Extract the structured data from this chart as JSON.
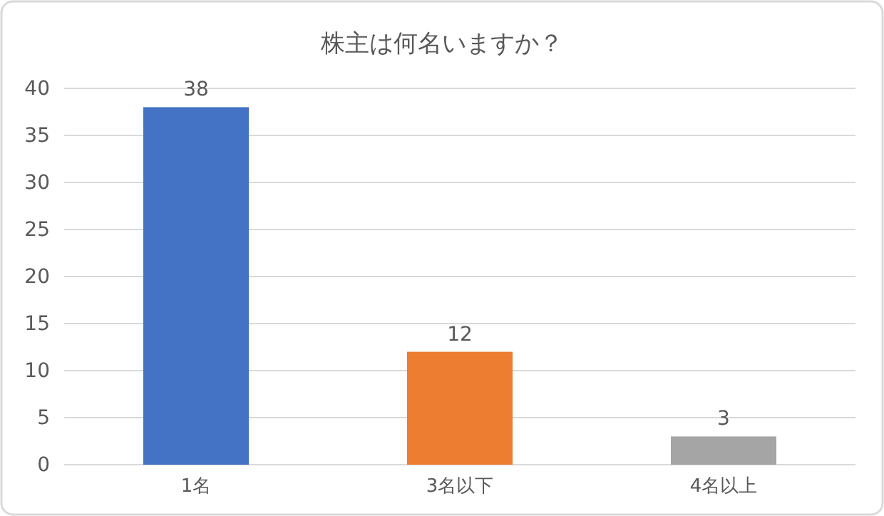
{
  "chart_data": {
    "type": "bar",
    "title": "株主は何名いますか？",
    "categories": [
      "1名",
      "3名以下",
      "4名以上"
    ],
    "values": [
      38,
      12,
      3
    ],
    "colors": [
      "#4472c4",
      "#ed7d31",
      "#a5a5a5"
    ],
    "ylim": [
      0,
      40
    ],
    "yticks": [
      0,
      5,
      10,
      15,
      20,
      25,
      30,
      35,
      40
    ],
    "grid": "y",
    "data_labels": true
  }
}
